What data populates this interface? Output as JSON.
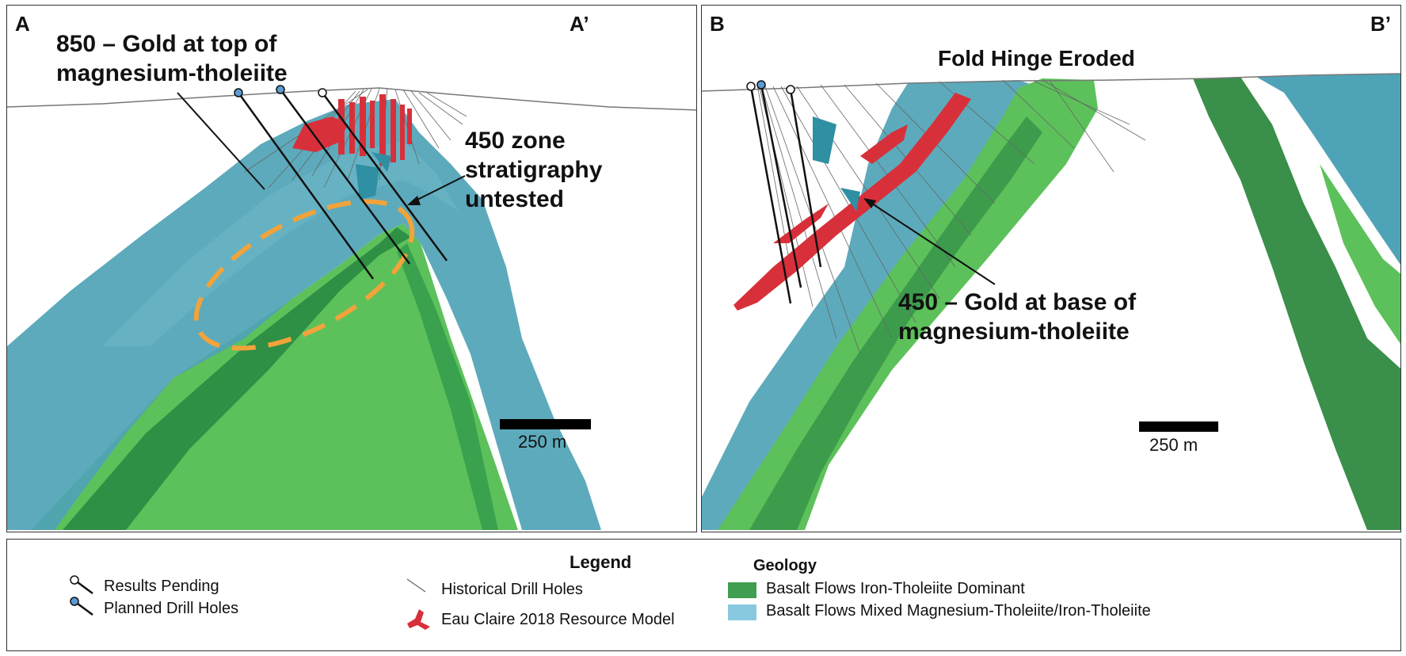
{
  "panel_a": {
    "label_left": "A",
    "label_right": "A’",
    "annotation_850_line1": "850 – Gold at top of",
    "annotation_850_line2": "magnesium-tholeiite",
    "annotation_450_line1": "450 zone",
    "annotation_450_line2": "stratigraphy",
    "annotation_450_line3": "untested",
    "scale_label": "250 m"
  },
  "panel_b": {
    "label_left": "B",
    "label_right": "B’",
    "annotation_hinge": "Fold Hinge Eroded",
    "annotation_450_line1": "450 – Gold at base of",
    "annotation_450_line2": "magnesium-tholeiite",
    "scale_label": "250 m"
  },
  "legend": {
    "title": "Legend",
    "results_pending": "Results Pending",
    "planned_holes": "Planned Drill Holes",
    "historical_holes": "Historical Drill Holes",
    "resource_model": "Eau Claire 2018 Resource Model",
    "geology_title": "Geology",
    "iron_tholeiite": "Basalt Flows Iron-Tholeiite Dominant",
    "mixed_tholeiite": "Basalt Flows Mixed Magnesium-Tholeiite/Iron-Tholeiite"
  },
  "colors": {
    "iron_tholeiite_green": "#3f9e4f",
    "mixed_tholeiite_blue": "#88c9e0",
    "model_teal": "#4fa3b6",
    "light_green": "#5cc15a",
    "resource_red": "#d8303a",
    "untested_orange": "#f2a33a",
    "planned_blue": "#5b9bd5"
  }
}
